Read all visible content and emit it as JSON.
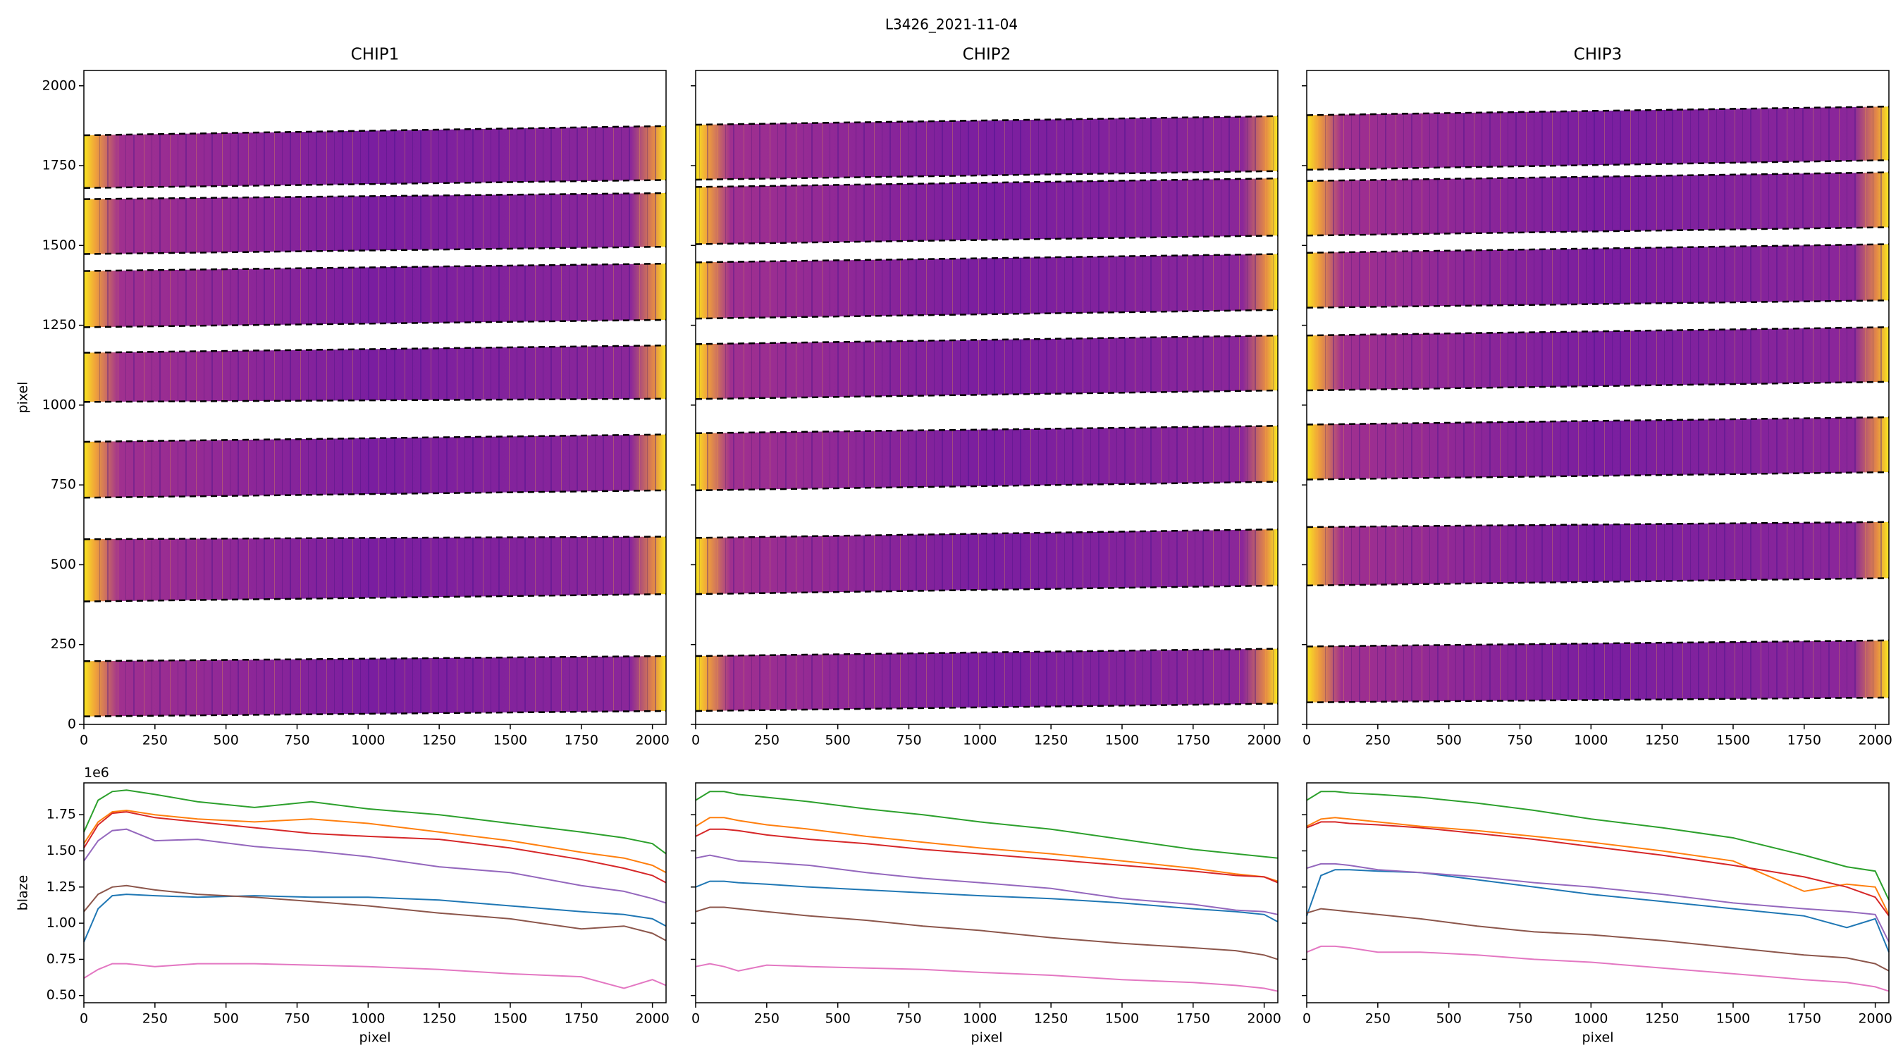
{
  "title": "L3426_2021-11-04",
  "chart_data": [
    {
      "type": "image",
      "title": "CHIP1",
      "ylabel": "pixel",
      "xlim": [
        0,
        2048
      ],
      "ylim": [
        0,
        2048
      ],
      "xticks": [
        0,
        250,
        500,
        750,
        1000,
        1250,
        1500,
        1750,
        2000
      ],
      "yticks": [
        0,
        250,
        500,
        750,
        1000,
        1250,
        1500,
        1750,
        2000
      ],
      "show_ytick_labels": true,
      "band_x": [
        0,
        2047
      ],
      "bands": [
        {
          "lower": [
            1680,
            1705
          ],
          "upper": [
            1845,
            1874
          ]
        },
        {
          "lower": [
            1473,
            1496
          ],
          "upper": [
            1645,
            1664
          ]
        },
        {
          "lower": [
            1244,
            1267
          ],
          "upper": [
            1420,
            1443
          ]
        },
        {
          "lower": [
            1010,
            1020
          ],
          "upper": [
            1164,
            1187
          ]
        },
        {
          "lower": [
            710,
            733
          ],
          "upper": [
            885,
            908
          ]
        },
        {
          "lower": [
            385,
            408
          ],
          "upper": [
            580,
            588
          ]
        },
        {
          "lower": [
            25,
            42
          ],
          "upper": [
            198,
            214
          ]
        }
      ]
    },
    {
      "type": "image",
      "title": "CHIP2",
      "xlim": [
        0,
        2048
      ],
      "ylim": [
        0,
        2048
      ],
      "xticks": [
        0,
        250,
        500,
        750,
        1000,
        1250,
        1500,
        1750,
        2000
      ],
      "yticks": [
        0,
        250,
        500,
        750,
        1000,
        1250,
        1500,
        1750,
        2000
      ],
      "show_ytick_labels": false,
      "band_x": [
        0,
        2047
      ],
      "bands": [
        {
          "lower": [
            1706,
            1733
          ],
          "upper": [
            1878,
            1905
          ]
        },
        {
          "lower": [
            1504,
            1531
          ],
          "upper": [
            1683,
            1710
          ]
        },
        {
          "lower": [
            1271,
            1298
          ],
          "upper": [
            1447,
            1473
          ]
        },
        {
          "lower": [
            1019,
            1046
          ],
          "upper": [
            1191,
            1218
          ]
        },
        {
          "lower": [
            733,
            760
          ],
          "upper": [
            912,
            935
          ]
        },
        {
          "lower": [
            408,
            435
          ],
          "upper": [
            584,
            611
          ]
        },
        {
          "lower": [
            42,
            65
          ],
          "upper": [
            214,
            237
          ]
        }
      ]
    },
    {
      "type": "image",
      "title": "CHIP3",
      "xlim": [
        0,
        2048
      ],
      "ylim": [
        0,
        2048
      ],
      "xticks": [
        0,
        250,
        500,
        750,
        1000,
        1250,
        1500,
        1750,
        2000
      ],
      "yticks": [
        0,
        250,
        500,
        750,
        1000,
        1250,
        1500,
        1750,
        2000
      ],
      "show_ytick_labels": false,
      "band_x": [
        0,
        2047
      ],
      "bands": [
        {
          "lower": [
            1737,
            1767
          ],
          "upper": [
            1908,
            1935
          ]
        },
        {
          "lower": [
            1531,
            1557
          ],
          "upper": [
            1702,
            1729
          ]
        },
        {
          "lower": [
            1305,
            1328
          ],
          "upper": [
            1477,
            1504
          ]
        },
        {
          "lower": [
            1046,
            1073
          ],
          "upper": [
            1218,
            1244
          ]
        },
        {
          "lower": [
            767,
            790
          ],
          "upper": [
            939,
            962
          ]
        },
        {
          "lower": [
            435,
            458
          ],
          "upper": [
            618,
            634
          ]
        },
        {
          "lower": [
            69,
            84
          ],
          "upper": [
            244,
            263
          ]
        }
      ]
    },
    {
      "type": "line",
      "ylabel": "blaze",
      "xlabel": "pixel",
      "offset_label": "1e6",
      "xlim": [
        0,
        2048
      ],
      "ylim": [
        0.45,
        1.97
      ],
      "xticks": [
        0,
        250,
        500,
        750,
        1000,
        1250,
        1500,
        1750,
        2000
      ],
      "yticks": [
        {
          "value": 0.5,
          "label": "0.50"
        },
        {
          "value": 0.75,
          "label": "0.75"
        },
        {
          "value": 1.0,
          "label": "1.00"
        },
        {
          "value": 1.25,
          "label": "1.25"
        },
        {
          "value": 1.5,
          "label": "1.50"
        },
        {
          "value": 1.75,
          "label": "1.75"
        }
      ],
      "show_ytick_labels": true,
      "x": [
        0,
        50,
        100,
        150,
        250,
        400,
        600,
        800,
        1000,
        1250,
        1500,
        1750,
        1900,
        2000,
        2048
      ],
      "series": [
        {
          "color": "#1f77b4",
          "values": [
            0.87,
            1.1,
            1.19,
            1.2,
            1.19,
            1.18,
            1.19,
            1.18,
            1.18,
            1.16,
            1.12,
            1.08,
            1.06,
            1.03,
            0.98
          ]
        },
        {
          "color": "#ff7f0e",
          "values": [
            1.55,
            1.7,
            1.77,
            1.78,
            1.75,
            1.72,
            1.7,
            1.72,
            1.69,
            1.63,
            1.57,
            1.49,
            1.45,
            1.4,
            1.35
          ]
        },
        {
          "color": "#2ca02c",
          "values": [
            1.63,
            1.85,
            1.91,
            1.92,
            1.89,
            1.84,
            1.8,
            1.84,
            1.79,
            1.75,
            1.69,
            1.63,
            1.59,
            1.55,
            1.48
          ]
        },
        {
          "color": "#d62728",
          "values": [
            1.52,
            1.68,
            1.76,
            1.77,
            1.73,
            1.7,
            1.66,
            1.62,
            1.6,
            1.58,
            1.52,
            1.44,
            1.38,
            1.33,
            1.28
          ]
        },
        {
          "color": "#9467bd",
          "values": [
            1.43,
            1.57,
            1.64,
            1.65,
            1.57,
            1.58,
            1.53,
            1.5,
            1.46,
            1.39,
            1.35,
            1.26,
            1.22,
            1.17,
            1.14
          ]
        },
        {
          "color": "#8c564b",
          "values": [
            1.08,
            1.2,
            1.25,
            1.26,
            1.23,
            1.2,
            1.18,
            1.15,
            1.12,
            1.07,
            1.03,
            0.96,
            0.98,
            0.93,
            0.88
          ]
        },
        {
          "color": "#e377c2",
          "values": [
            0.62,
            0.68,
            0.72,
            0.72,
            0.7,
            0.72,
            0.72,
            0.71,
            0.7,
            0.68,
            0.65,
            0.63,
            0.55,
            0.61,
            0.57
          ]
        }
      ]
    },
    {
      "type": "line",
      "xlabel": "pixel",
      "xlim": [
        0,
        2048
      ],
      "ylim": [
        0.45,
        1.97
      ],
      "xticks": [
        0,
        250,
        500,
        750,
        1000,
        1250,
        1500,
        1750,
        2000
      ],
      "yticks": [
        {
          "value": 0.5,
          "label": "0.50"
        },
        {
          "value": 0.75,
          "label": "0.75"
        },
        {
          "value": 1.0,
          "label": "1.00"
        },
        {
          "value": 1.25,
          "label": "1.25"
        },
        {
          "value": 1.5,
          "label": "1.50"
        },
        {
          "value": 1.75,
          "label": "1.75"
        }
      ],
      "show_ytick_labels": false,
      "x": [
        0,
        50,
        100,
        150,
        250,
        400,
        600,
        800,
        1000,
        1250,
        1500,
        1750,
        1900,
        2000,
        2048
      ],
      "series": [
        {
          "color": "#1f77b4",
          "values": [
            1.25,
            1.29,
            1.29,
            1.28,
            1.27,
            1.25,
            1.23,
            1.21,
            1.19,
            1.17,
            1.14,
            1.1,
            1.08,
            1.06,
            1.01
          ]
        },
        {
          "color": "#ff7f0e",
          "values": [
            1.67,
            1.73,
            1.73,
            1.71,
            1.68,
            1.65,
            1.6,
            1.56,
            1.52,
            1.48,
            1.43,
            1.38,
            1.34,
            1.32,
            1.29
          ]
        },
        {
          "color": "#2ca02c",
          "values": [
            1.85,
            1.91,
            1.91,
            1.89,
            1.87,
            1.84,
            1.79,
            1.75,
            1.7,
            1.65,
            1.58,
            1.51,
            1.48,
            1.46,
            1.45
          ]
        },
        {
          "color": "#d62728",
          "values": [
            1.6,
            1.65,
            1.65,
            1.64,
            1.61,
            1.58,
            1.55,
            1.51,
            1.48,
            1.44,
            1.4,
            1.36,
            1.33,
            1.32,
            1.28
          ]
        },
        {
          "color": "#9467bd",
          "values": [
            1.45,
            1.47,
            1.45,
            1.43,
            1.42,
            1.4,
            1.35,
            1.31,
            1.28,
            1.24,
            1.17,
            1.13,
            1.09,
            1.08,
            1.06
          ]
        },
        {
          "color": "#8c564b",
          "values": [
            1.08,
            1.11,
            1.11,
            1.1,
            1.08,
            1.05,
            1.02,
            0.98,
            0.95,
            0.9,
            0.86,
            0.83,
            0.81,
            0.78,
            0.75
          ]
        },
        {
          "color": "#e377c2",
          "values": [
            0.7,
            0.72,
            0.7,
            0.67,
            0.71,
            0.7,
            0.69,
            0.68,
            0.66,
            0.64,
            0.61,
            0.59,
            0.57,
            0.55,
            0.53
          ]
        }
      ]
    },
    {
      "type": "line",
      "xlabel": "pixel",
      "xlim": [
        0,
        2048
      ],
      "ylim": [
        0.45,
        1.97
      ],
      "xticks": [
        0,
        250,
        500,
        750,
        1000,
        1250,
        1500,
        1750,
        2000
      ],
      "yticks": [
        {
          "value": 0.5,
          "label": "0.50"
        },
        {
          "value": 0.75,
          "label": "0.75"
        },
        {
          "value": 1.0,
          "label": "1.00"
        },
        {
          "value": 1.25,
          "label": "1.25"
        },
        {
          "value": 1.5,
          "label": "1.50"
        },
        {
          "value": 1.75,
          "label": "1.75"
        }
      ],
      "show_ytick_labels": false,
      "x": [
        0,
        50,
        100,
        150,
        250,
        400,
        600,
        800,
        1000,
        1250,
        1500,
        1750,
        1900,
        2000,
        2048
      ],
      "series": [
        {
          "color": "#1f77b4",
          "values": [
            1.05,
            1.33,
            1.37,
            1.37,
            1.36,
            1.35,
            1.3,
            1.25,
            1.2,
            1.15,
            1.1,
            1.05,
            0.97,
            1.03,
            0.8
          ]
        },
        {
          "color": "#ff7f0e",
          "values": [
            1.67,
            1.72,
            1.73,
            1.72,
            1.7,
            1.67,
            1.64,
            1.6,
            1.56,
            1.5,
            1.43,
            1.22,
            1.27,
            1.25,
            1.06
          ]
        },
        {
          "color": "#2ca02c",
          "values": [
            1.85,
            1.91,
            1.91,
            1.9,
            1.89,
            1.87,
            1.83,
            1.78,
            1.72,
            1.66,
            1.59,
            1.47,
            1.39,
            1.36,
            1.16
          ]
        },
        {
          "color": "#d62728",
          "values": [
            1.66,
            1.7,
            1.7,
            1.69,
            1.68,
            1.66,
            1.62,
            1.58,
            1.53,
            1.47,
            1.4,
            1.32,
            1.25,
            1.18,
            1.05
          ]
        },
        {
          "color": "#9467bd",
          "values": [
            1.38,
            1.41,
            1.41,
            1.4,
            1.37,
            1.35,
            1.32,
            1.28,
            1.25,
            1.2,
            1.14,
            1.1,
            1.08,
            1.06,
            0.87
          ]
        },
        {
          "color": "#8c564b",
          "values": [
            1.07,
            1.1,
            1.09,
            1.08,
            1.06,
            1.03,
            0.98,
            0.94,
            0.92,
            0.88,
            0.83,
            0.78,
            0.76,
            0.72,
            0.67
          ]
        },
        {
          "color": "#e377c2",
          "values": [
            0.8,
            0.84,
            0.84,
            0.83,
            0.8,
            0.8,
            0.78,
            0.75,
            0.73,
            0.69,
            0.65,
            0.61,
            0.59,
            0.56,
            0.53
          ]
        }
      ]
    }
  ]
}
